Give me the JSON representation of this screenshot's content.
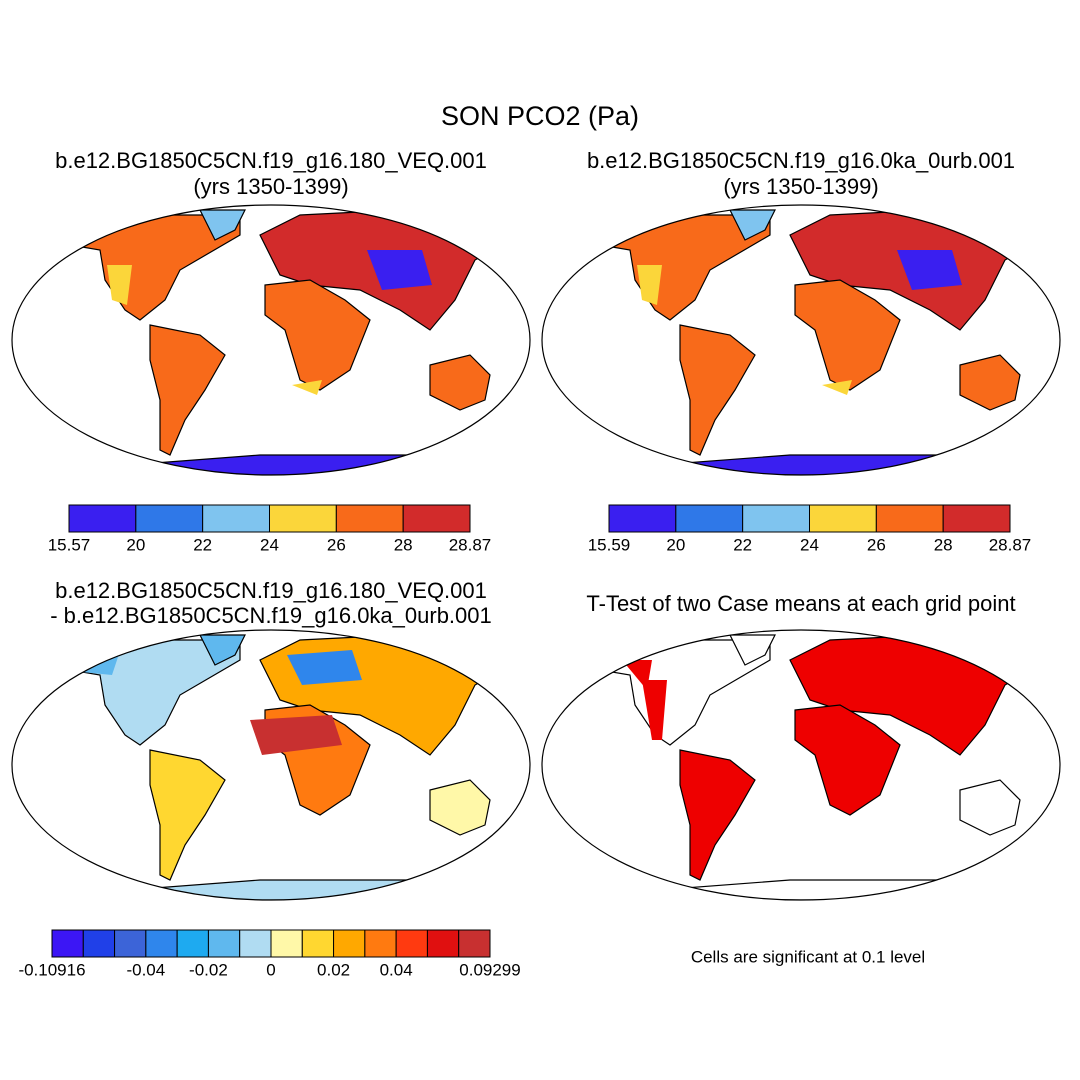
{
  "title": "SON PCO2 (Pa)",
  "panels": [
    {
      "title": [
        "b.e12.BG1850C5CN.f19_g16.180_VEQ.001",
        "(yrs 1350-1399)"
      ]
    },
    {
      "title": [
        "b.e12.BG1850C5CN.f19_g16.0ka_0urb.001",
        "(yrs 1350-1399)"
      ]
    },
    {
      "title": [
        "b.e12.BG1850C5CN.f19_g16.180_VEQ.001",
        "- b.e12.BG1850C5CN.f19_g16.0ka_0urb.001"
      ]
    },
    {
      "title": [
        "T-Test of two Case means at each grid point"
      ]
    }
  ],
  "colorbars": [
    {
      "colors": [
        "#3a1ff0",
        "#2f78e8",
        "#7fc4ef",
        "#fbd63a",
        "#f86a1a",
        "#d22b2b"
      ],
      "labels": [
        "15.57",
        "20",
        "22",
        "24",
        "26",
        "28",
        "28.87"
      ]
    },
    {
      "colors": [
        "#3a1ff0",
        "#2f78e8",
        "#7fc4ef",
        "#fbd63a",
        "#f86a1a",
        "#d22b2b"
      ],
      "labels": [
        "15.59",
        "20",
        "22",
        "24",
        "26",
        "28",
        "28.87"
      ]
    },
    {
      "colors": [
        "#3c16f5",
        "#2040e8",
        "#3c64d8",
        "#2f86ec",
        "#1eaaf0",
        "#5fb8ee",
        "#b0dcf2",
        "#fff8a8",
        "#ffd730",
        "#ffa800",
        "#ff7a10",
        "#ff3a10",
        "#e01010",
        "#c83030"
      ],
      "labels": [
        "-0.10916",
        "-0.04",
        "-0.02",
        "0",
        "0.02",
        "0.04",
        "0.09299"
      ]
    }
  ],
  "note": "Cells are significant at 0.1 level"
}
